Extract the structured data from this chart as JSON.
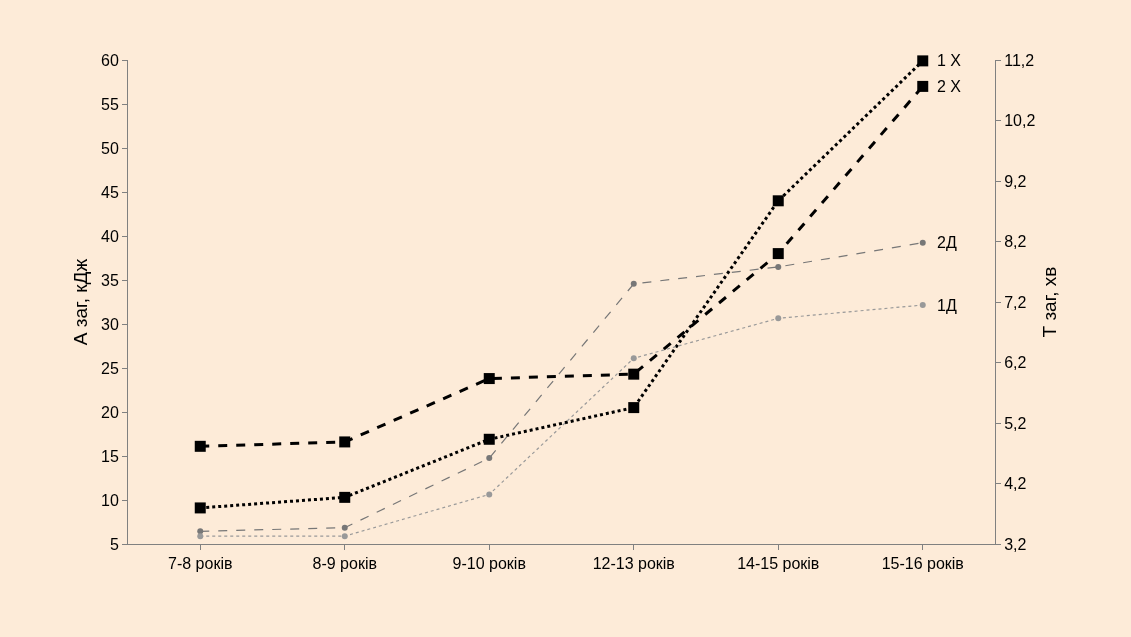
{
  "chart_data": {
    "type": "line",
    "categories": [
      "7-8 років",
      "8-9 років",
      "9-10 років",
      "12-13 років",
      "14-15 років",
      "15-16 років"
    ],
    "ylabel": "А заг, кДж",
    "y2label": "Т заг, хв",
    "ylim": [
      5,
      60
    ],
    "yticks": [
      5,
      10,
      15,
      20,
      25,
      30,
      35,
      40,
      45,
      50,
      55,
      60
    ],
    "y2lim": [
      3.2,
      11.2
    ],
    "y2ticks": [
      {
        "value": 3.2,
        "label": "3,2"
      },
      {
        "value": 4.2,
        "label": "4,2"
      },
      {
        "value": 5.2,
        "label": "5,2"
      },
      {
        "value": 6.2,
        "label": "6,2"
      },
      {
        "value": 7.2,
        "label": "7,2"
      },
      {
        "value": 8.2,
        "label": "8,2"
      },
      {
        "value": 9.2,
        "label": "9,2"
      },
      {
        "value": 10.2,
        "label": "10,2"
      },
      {
        "value": 11.2,
        "label": "11,2"
      }
    ],
    "grid": false,
    "legend": false,
    "series": [
      {
        "name": "1 Х",
        "color": "#000000",
        "marker": "square",
        "line_style": "dotted",
        "values": [
          9.1,
          10.3,
          16.9,
          20.5,
          44.0,
          59.9
        ]
      },
      {
        "name": "2 Х",
        "color": "#000000",
        "marker": "square",
        "line_style": "dashed",
        "values": [
          16.1,
          16.6,
          23.8,
          24.3,
          38.0,
          57.0
        ]
      },
      {
        "name": "2Д",
        "color": "#777777",
        "marker": "circle",
        "line_style": "dashed",
        "axis": "y2",
        "values": [
          3.41,
          3.47,
          4.62,
          7.5,
          7.78,
          8.18
        ]
      },
      {
        "name": "1Д",
        "color": "#999999",
        "marker": "circle",
        "line_style": "dotted",
        "axis": "y2",
        "values": [
          3.33,
          3.33,
          4.02,
          6.27,
          6.93,
          7.15
        ]
      }
    ]
  }
}
